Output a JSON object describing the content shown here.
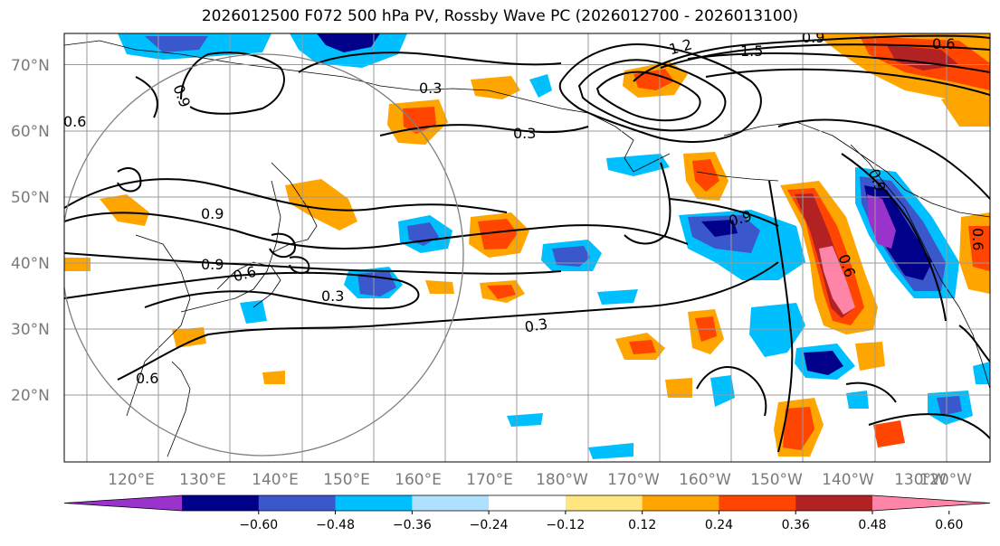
{
  "title": "2026012500 F072 500 hPa PV, Rossby Wave PC (2026012700 - 2026013100)",
  "lat_labels": [
    "70°N",
    "60°N",
    "50°N",
    "40°N",
    "30°N",
    "20°N"
  ],
  "lon_labels": [
    "120°E",
    "130°E",
    "140°E",
    "150°E",
    "160°E",
    "170°E",
    "180°W",
    "170°W",
    "160°W",
    "150°W",
    "140°W",
    "130°W",
    "120°W"
  ],
  "colorbar": {
    "ticks": [
      "−0.60",
      "−0.48",
      "−0.36",
      "−0.24",
      "−0.12",
      "0.12",
      "0.24",
      "0.36",
      "0.48",
      "0.60"
    ],
    "colors": [
      "#9933cc",
      "#00008b",
      "#3a58cc",
      "#00bfff",
      "#b0e0ff",
      "#ffffff",
      "#ffe680",
      "#ffa500",
      "#ff4500",
      "#b22222",
      "#ff85a8"
    ]
  },
  "contour_labels": [
    "0.6",
    "0.9",
    "0.3",
    "0.3",
    "1.2",
    "1.5",
    "0.9",
    "0.6",
    "0.9",
    "0.9",
    "0.9",
    "0.6",
    "0.3",
    "0.3",
    "0.6",
    "0.9",
    "0.6",
    "0.6"
  ],
  "colors": {
    "negative_strong": "#00008b",
    "positive_strong": "#b22222",
    "contour": "#000000",
    "grid": "#9a9a9a",
    "circle": "#808080"
  }
}
